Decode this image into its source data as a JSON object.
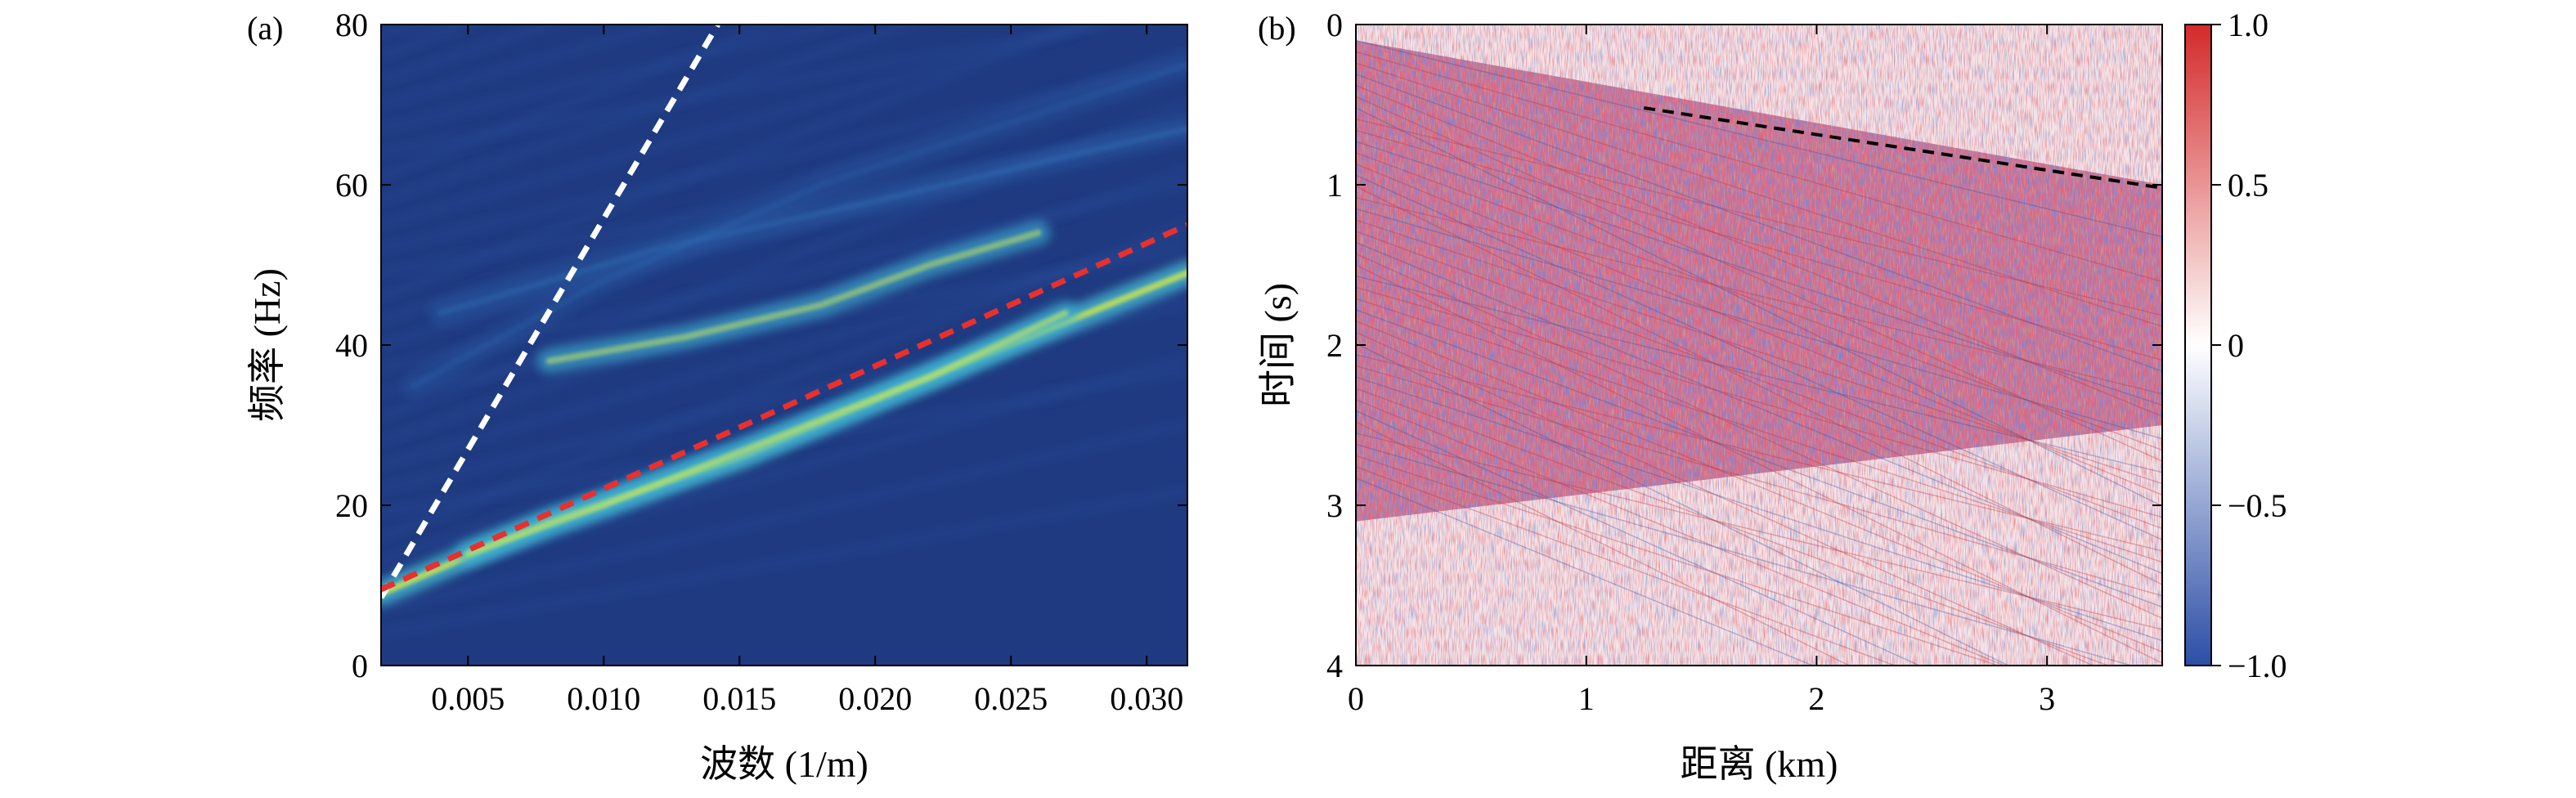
{
  "chart_data": [
    {
      "type": "heatmap",
      "panel_label": "(a)",
      "xlabel": "波数 (1/m)",
      "ylabel": "频率 (Hz)",
      "xlim": [
        0.0018,
        0.0315
      ],
      "ylim": [
        0,
        80
      ],
      "xticks": [
        0.005,
        0.01,
        0.015,
        0.02,
        0.025,
        0.03
      ],
      "xtick_labels": [
        "0.005",
        "0.010",
        "0.015",
        "0.020",
        "0.025",
        "0.030"
      ],
      "yticks": [
        0,
        20,
        40,
        60,
        80
      ],
      "ytick_labels": [
        "0",
        "20",
        "40",
        "60",
        "80"
      ],
      "background_color": "#1f3a80",
      "energy_bands": [
        {
          "points": [
            [
              0.0018,
              9
            ],
            [
              0.008,
              18
            ],
            [
              0.015,
              26
            ],
            [
              0.022,
              36
            ],
            [
              0.0315,
              49
            ]
          ],
          "color": "#48c2d8",
          "core_color": "#e6ef3a",
          "intensity": 1.0
        },
        {
          "points": [
            [
              0.005,
              14
            ],
            [
              0.01,
              20
            ],
            [
              0.016,
              28
            ],
            [
              0.022,
              36
            ],
            [
              0.027,
              44
            ]
          ],
          "color": "#3db4d6",
          "core_color": "#d8ee50",
          "intensity": 0.8
        },
        {
          "points": [
            [
              0.008,
              38
            ],
            [
              0.013,
              41
            ],
            [
              0.018,
              45
            ],
            [
              0.022,
              50
            ],
            [
              0.026,
              54
            ]
          ],
          "color": "#42b8d8",
          "core_color": "#d6ee55",
          "intensity": 0.7
        },
        {
          "points": [
            [
              0.004,
              44
            ],
            [
              0.012,
              52
            ],
            [
              0.02,
              58
            ],
            [
              0.0315,
              67
            ]
          ],
          "color": "#2e6ab4",
          "core_color": "#3b8ccc",
          "intensity": 0.3
        },
        {
          "points": [
            [
              0.003,
              35
            ],
            [
              0.01,
              48
            ],
            [
              0.018,
              60
            ],
            [
              0.0315,
              75
            ]
          ],
          "color": "#2b5fa8",
          "core_color": "#3478bf",
          "intensity": 0.25
        }
      ],
      "reference_lines": [
        {
          "style": "dashed",
          "color": "#ffffff",
          "points": [
            [
              0.0018,
              8.5
            ],
            [
              0.0142,
              80
            ]
          ]
        },
        {
          "style": "dashed",
          "color": "#e8302f",
          "points": [
            [
              0.0018,
              9.5
            ],
            [
              0.0315,
              55
            ]
          ]
        }
      ]
    },
    {
      "type": "heatmap",
      "panel_label": "(b)",
      "xlabel": "距离 (km)",
      "ylabel": "时间 (s)",
      "xlim": [
        0,
        3.5
      ],
      "ylim": [
        4,
        0
      ],
      "xticks": [
        0,
        1,
        2,
        3
      ],
      "xtick_labels": [
        "0",
        "1",
        "2",
        "3"
      ],
      "yticks": [
        0,
        1,
        2,
        3,
        4
      ],
      "ytick_labels": [
        "0",
        "1",
        "2",
        "3",
        "4"
      ],
      "colormap": [
        "#2b4ea6",
        "#ffffff",
        "#d42a2a"
      ],
      "colorbar": {
        "min": -1.0,
        "max": 1.0,
        "ticks": [
          1.0,
          0.5,
          0,
          -0.5,
          -1.0
        ],
        "tick_labels": [
          "1.0",
          "0.5",
          "0",
          "−0.5",
          "−1.0"
        ]
      },
      "signal_region": {
        "apex": [
          0,
          0.1
        ],
        "upper_edge_end": [
          3.5,
          1.0
        ],
        "lower_edge_end": [
          3.5,
          2.5
        ]
      },
      "reference_lines": [
        {
          "style": "dashed",
          "color": "#000000",
          "points": [
            [
              1.25,
              0.52
            ],
            [
              3.5,
              1.02
            ]
          ]
        }
      ]
    }
  ]
}
